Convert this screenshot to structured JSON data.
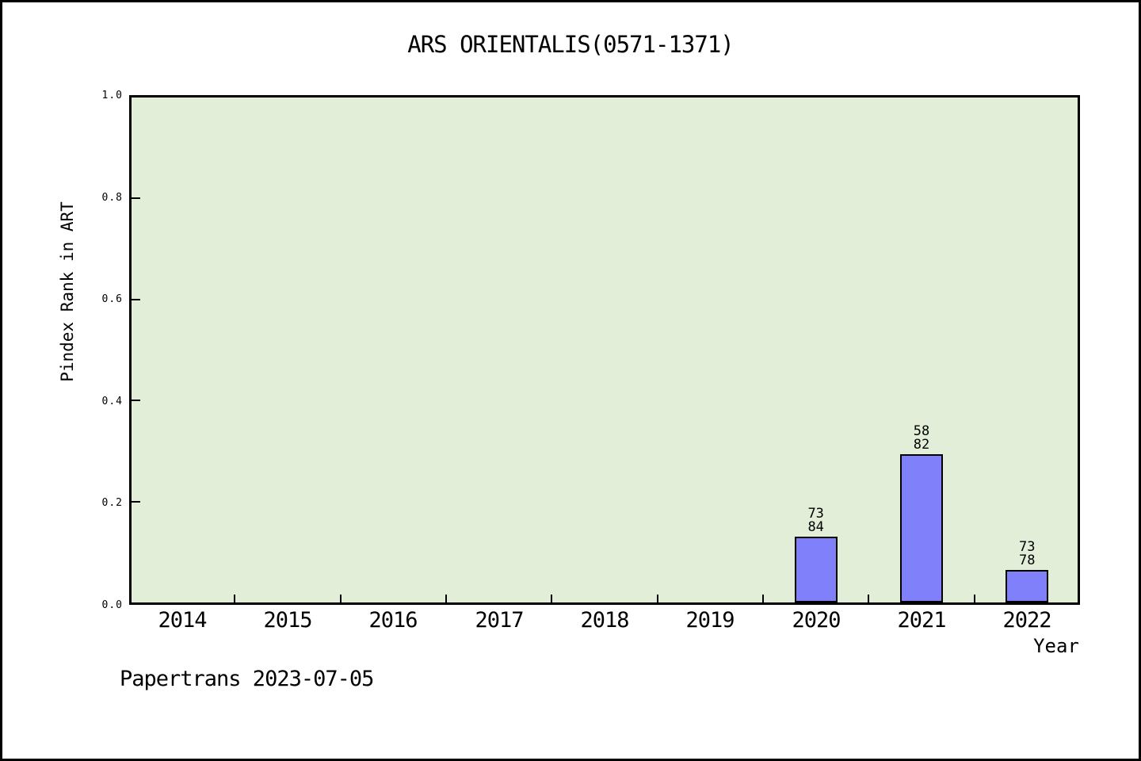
{
  "chart_data": {
    "type": "bar",
    "title": "ARS ORIENTALIS(0571-1371)",
    "xlabel": "Year",
    "ylabel": "Pindex Rank in ART",
    "categories": [
      "2014",
      "2015",
      "2016",
      "2017",
      "2018",
      "2019",
      "2020",
      "2021",
      "2022"
    ],
    "values": [
      null,
      null,
      null,
      null,
      null,
      null,
      0.131,
      0.293,
      0.064
    ],
    "bars": [
      {
        "category": "2020",
        "rank": "73",
        "total": "84",
        "height_fraction": 0.131
      },
      {
        "category": "2021",
        "rank": "58",
        "total": "82",
        "height_fraction": 0.293
      },
      {
        "category": "2022",
        "rank": "73",
        "total": "78",
        "height_fraction": 0.064
      }
    ],
    "ylim": [
      0.0,
      1.0
    ],
    "ytick_labels": [
      "1.0",
      "0.8",
      "0.6",
      "0.4",
      "0.2",
      "0.0"
    ],
    "grid": false,
    "legend_position": "none",
    "colors": {
      "bar_fill": "#8080fa",
      "bar_border": "#000000",
      "plot_background": "#e2eed8",
      "frame": "#000000",
      "text": "#000000"
    }
  },
  "footer": {
    "watermark": "Papertrans 2023-07-05"
  }
}
